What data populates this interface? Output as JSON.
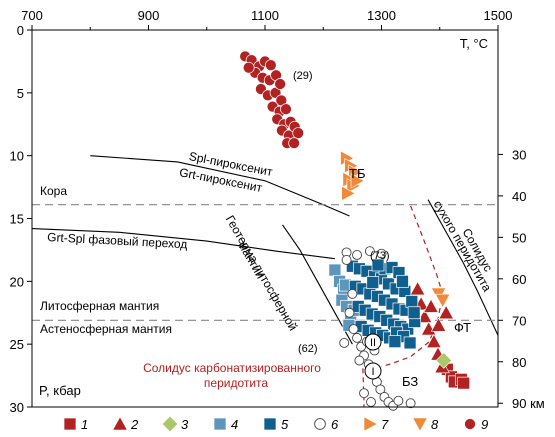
{
  "chart_data": {
    "type": "scatter",
    "x_axis": {
      "range": [
        700,
        1500
      ],
      "ticks": [
        700,
        900,
        1100,
        1300,
        1500
      ],
      "label": "T, °C"
    },
    "y_axis": {
      "range": [
        0,
        30
      ],
      "ticks": [
        0,
        5,
        10,
        15,
        20,
        25,
        30
      ],
      "label": "P, кбар",
      "inverted": true
    },
    "depth_axis": {
      "ticks": [
        30,
        40,
        50,
        60,
        70,
        80
      ],
      "last_label": "90 км",
      "last_value": 90
    },
    "grid": false,
    "legend_position": "bottom",
    "colors": {
      "s1": "#b22222",
      "s2": "#b22222",
      "s3": "#a8c86a",
      "s4": "#5e95bc",
      "s5": "#0f5f8f",
      "s7": "#f08a3a",
      "s9": "#b22222",
      "solidus_carb": "#b22222",
      "dashed_gray": "#888888"
    },
    "series": [
      {
        "name": "1",
        "marker": "square",
        "color": "#b22222",
        "points": [
          [
            1413,
            27.0
          ],
          [
            1420,
            27.6
          ],
          [
            1425,
            28.0
          ],
          [
            1437,
            27.8
          ],
          [
            1441,
            28.1
          ]
        ]
      },
      {
        "name": "2",
        "marker": "triangle",
        "color": "#b22222",
        "points": [
          [
            1362,
            20.6
          ],
          [
            1368,
            21.8
          ],
          [
            1374,
            22.8
          ],
          [
            1381,
            23.8
          ],
          [
            1390,
            24.8
          ],
          [
            1397,
            25.8
          ],
          [
            1404,
            26.8
          ],
          [
            1411,
            22.5
          ],
          [
            1398,
            23.5
          ],
          [
            1385,
            22.0
          ]
        ]
      },
      {
        "name": "3",
        "marker": "diamond",
        "color": "#a8c86a",
        "points": [
          [
            1407,
            26.3
          ]
        ]
      },
      {
        "name": "4",
        "marker": "square",
        "color": "#5e95bc",
        "points": [
          [
            1220,
            19.1
          ],
          [
            1228,
            20.0
          ],
          [
            1235,
            20.7
          ],
          [
            1232,
            21.5
          ],
          [
            1240,
            22.0
          ],
          [
            1247,
            22.8
          ],
          [
            1244,
            23.5
          ],
          [
            1253,
            22.3
          ],
          [
            1238,
            20.3
          ]
        ]
      },
      {
        "name": "5",
        "marker": "square",
        "color": "#0f5f8f",
        "points": [
          [
            1250,
            18.8
          ],
          [
            1262,
            19.0
          ],
          [
            1275,
            19.2
          ],
          [
            1288,
            19.6
          ],
          [
            1300,
            19.8
          ],
          [
            1312,
            20.2
          ],
          [
            1325,
            20.6
          ],
          [
            1340,
            20.8
          ],
          [
            1255,
            20.4
          ],
          [
            1268,
            20.6
          ],
          [
            1280,
            21.0
          ],
          [
            1293,
            21.2
          ],
          [
            1305,
            21.5
          ],
          [
            1318,
            21.8
          ],
          [
            1330,
            22.2
          ],
          [
            1342,
            22.3
          ],
          [
            1352,
            21.6
          ],
          [
            1260,
            22.0
          ],
          [
            1272,
            22.3
          ],
          [
            1284,
            22.6
          ],
          [
            1297,
            22.8
          ],
          [
            1309,
            23.1
          ],
          [
            1321,
            23.4
          ],
          [
            1333,
            23.6
          ],
          [
            1345,
            23.8
          ],
          [
            1357,
            23.2
          ],
          [
            1265,
            23.6
          ],
          [
            1277,
            23.9
          ],
          [
            1290,
            24.1
          ],
          [
            1302,
            24.3
          ],
          [
            1314,
            24.5
          ],
          [
            1326,
            24.1
          ],
          [
            1338,
            24.4
          ],
          [
            1349,
            24.9
          ],
          [
            1306,
            19.0
          ],
          [
            1294,
            18.7
          ],
          [
            1318,
            18.9
          ],
          [
            1330,
            19.3
          ],
          [
            1285,
            20.1
          ],
          [
            1323,
            24.8
          ],
          [
            1336,
            20.0
          ],
          [
            1356,
            22.5
          ]
        ]
      },
      {
        "name": "6",
        "marker": "circle-open",
        "color": "#444444",
        "points": [
          [
            1240,
            17.7
          ],
          [
            1258,
            17.9
          ],
          [
            1280,
            17.6
          ],
          [
            1300,
            17.8
          ],
          [
            1250,
            21.0
          ],
          [
            1245,
            22.5
          ],
          [
            1252,
            23.8
          ],
          [
            1258,
            24.5
          ],
          [
            1265,
            25.2
          ],
          [
            1270,
            25.9
          ],
          [
            1278,
            26.6
          ],
          [
            1285,
            27.3
          ],
          [
            1292,
            28.0
          ],
          [
            1298,
            28.6
          ],
          [
            1305,
            29.2
          ],
          [
            1312,
            29.6
          ],
          [
            1320,
            29.9
          ],
          [
            1262,
            26.3
          ],
          [
            1288,
            25.5
          ],
          [
            1275,
            24.8
          ],
          [
            1236,
            24.9
          ],
          [
            1270,
            28.9
          ],
          [
            1282,
            29.6
          ],
          [
            1329,
            29.5
          ],
          [
            1350,
            29.7
          ],
          [
            1240,
            18.3
          ]
        ]
      },
      {
        "name": "7",
        "marker": "triangle-right",
        "color": "#f08a3a",
        "points": [
          [
            1240,
            10.2
          ],
          [
            1247,
            10.8
          ],
          [
            1254,
            11.3
          ],
          [
            1244,
            11.9
          ],
          [
            1251,
            12.4
          ],
          [
            1242,
            13.0
          ],
          [
            1258,
            12.0
          ]
        ]
      },
      {
        "name": "8",
        "marker": "triangle-down",
        "color": "#f08a3a",
        "points": [
          [
            1398,
            21.0
          ],
          [
            1405,
            21.5
          ]
        ]
      },
      {
        "name": "9",
        "marker": "circle",
        "color": "#b22222",
        "points": [
          [
            1066,
            2.1
          ],
          [
            1077,
            2.4
          ],
          [
            1090,
            2.9
          ],
          [
            1100,
            2.5
          ],
          [
            1110,
            2.8
          ],
          [
            1083,
            3.4
          ],
          [
            1096,
            3.8
          ],
          [
            1108,
            4.0
          ],
          [
            1119,
            3.6
          ],
          [
            1093,
            4.7
          ],
          [
            1105,
            5.2
          ],
          [
            1118,
            5.0
          ],
          [
            1128,
            5.6
          ],
          [
            1113,
            6.1
          ],
          [
            1125,
            6.5
          ],
          [
            1136,
            6.3
          ],
          [
            1121,
            7.1
          ],
          [
            1133,
            7.5
          ],
          [
            1144,
            7.3
          ],
          [
            1129,
            8.0
          ],
          [
            1141,
            8.4
          ],
          [
            1151,
            7.7
          ],
          [
            1157,
            8.2
          ],
          [
            1138,
            9.0
          ],
          [
            1150,
            9.0
          ],
          [
            1072,
            3.0
          ],
          [
            1126,
            4.3
          ]
        ]
      }
    ],
    "lines": [
      {
        "name": "spl_grt",
        "style": "solid",
        "points": [
          [
            800,
            10.0
          ],
          [
            950,
            10.5
          ],
          [
            1100,
            12.0
          ],
          [
            1200,
            13.9
          ],
          [
            1245,
            14.8
          ]
        ]
      },
      {
        "name": "grt_spl",
        "style": "solid",
        "points": [
          [
            700,
            15.8
          ],
          [
            850,
            16.1
          ],
          [
            1000,
            16.8
          ],
          [
            1120,
            17.6
          ],
          [
            1220,
            18.2
          ]
        ]
      },
      {
        "name": "geotherm",
        "style": "solid",
        "points": [
          [
            1130,
            15.5
          ],
          [
            1160,
            17.5
          ],
          [
            1190,
            20.0
          ],
          [
            1220,
            22.5
          ],
          [
            1250,
            25.0
          ]
        ]
      },
      {
        "name": "dry_solidus",
        "style": "solid",
        "points": [
          [
            1380,
            13.5
          ],
          [
            1410,
            16.0
          ],
          [
            1440,
            18.5
          ],
          [
            1465,
            20.8
          ],
          [
            1490,
            23.3
          ],
          [
            1500,
            24.3
          ]
        ]
      },
      {
        "name": "carb_solidus",
        "style": "dashed",
        "color": "#b22222",
        "points": [
          [
            1350,
            14.0
          ],
          [
            1375,
            17.0
          ],
          [
            1395,
            19.5
          ],
          [
            1405,
            21.0
          ],
          [
            1397,
            23.0
          ],
          [
            1382,
            24.8
          ],
          [
            1350,
            26.0
          ],
          [
            1320,
            26.5
          ],
          [
            1300,
            26.8
          ]
        ]
      },
      {
        "name": "carb_solidus_left",
        "style": "dashed",
        "color": "#b22222",
        "points": [
          [
            1265,
            25.5
          ],
          [
            1268,
            27.0
          ],
          [
            1270,
            29.5
          ],
          [
            1270,
            30.0
          ]
        ]
      },
      {
        "name": "moho",
        "style": "dashed",
        "color": "#888888",
        "points": [
          [
            700,
            13.9
          ],
          [
            1500,
            13.9
          ]
        ]
      },
      {
        "name": "lab",
        "style": "dashed",
        "color": "#888888",
        "points": [
          [
            700,
            23.1
          ],
          [
            1500,
            23.1
          ]
        ]
      }
    ],
    "annotations": {
      "n29": "(29)",
      "n73": "(73)",
      "n62": "(62)",
      "tb": "ТБ",
      "ft": "ФТ",
      "bz": "БЗ",
      "roman_ii": "II",
      "roman_i": "I",
      "crust": "Кора",
      "spl_pyroxenite": "Spl-пироксенит",
      "grt_pyroxenite": "Grt-пироксенит",
      "grt_spl_transition": "Grt-Spl фазовый переход",
      "lithospheric_mantle": "Литосферная мантия",
      "asthenospheric_mantle": "Астеносферная мантия",
      "geotherm_line1": "Геотерма литосферной",
      "geotherm_line2": "мантии",
      "dry_solidus_line1": "Солидус",
      "dry_solidus_line2": "сухого перидотита",
      "carb_solidus_line1": "Солидус карбонатизированного",
      "carb_solidus_line2": "перидотита"
    },
    "legend": [
      {
        "label": "1",
        "marker": "square",
        "color": "#b22222"
      },
      {
        "label": "2",
        "marker": "triangle",
        "color": "#b22222"
      },
      {
        "label": "3",
        "marker": "diamond",
        "color": "#a8c86a"
      },
      {
        "label": "4",
        "marker": "square",
        "color": "#5e95bc"
      },
      {
        "label": "5",
        "marker": "square",
        "color": "#0f5f8f"
      },
      {
        "label": "6",
        "marker": "circle-open",
        "color": "#444444"
      },
      {
        "label": "7",
        "marker": "triangle-right",
        "color": "#f08a3a"
      },
      {
        "label": "8",
        "marker": "triangle-down",
        "color": "#f08a3a"
      },
      {
        "label": "9",
        "marker": "circle",
        "color": "#b22222"
      }
    ]
  }
}
